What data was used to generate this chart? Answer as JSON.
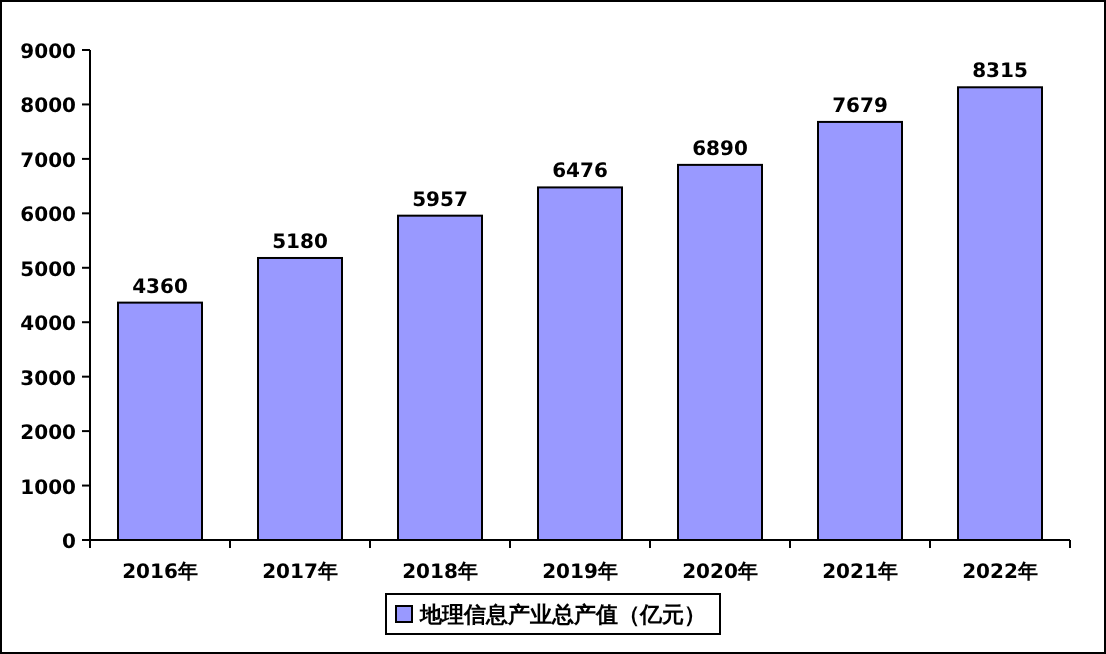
{
  "chart_data": {
    "type": "bar",
    "categories": [
      "2016年",
      "2017年",
      "2018年",
      "2019年",
      "2020年",
      "2021年",
      "2022年"
    ],
    "series": [
      {
        "name": "地理信息产业总产值（亿元）",
        "color": "#9999ff",
        "values": [
          4360,
          5180,
          5957,
          6476,
          6890,
          7679,
          8315
        ]
      }
    ],
    "ylim": [
      0,
      9000
    ],
    "yticks": [
      0,
      1000,
      2000,
      3000,
      4000,
      5000,
      6000,
      7000,
      8000,
      9000
    ],
    "data_labels": true,
    "legend": "bottom"
  }
}
